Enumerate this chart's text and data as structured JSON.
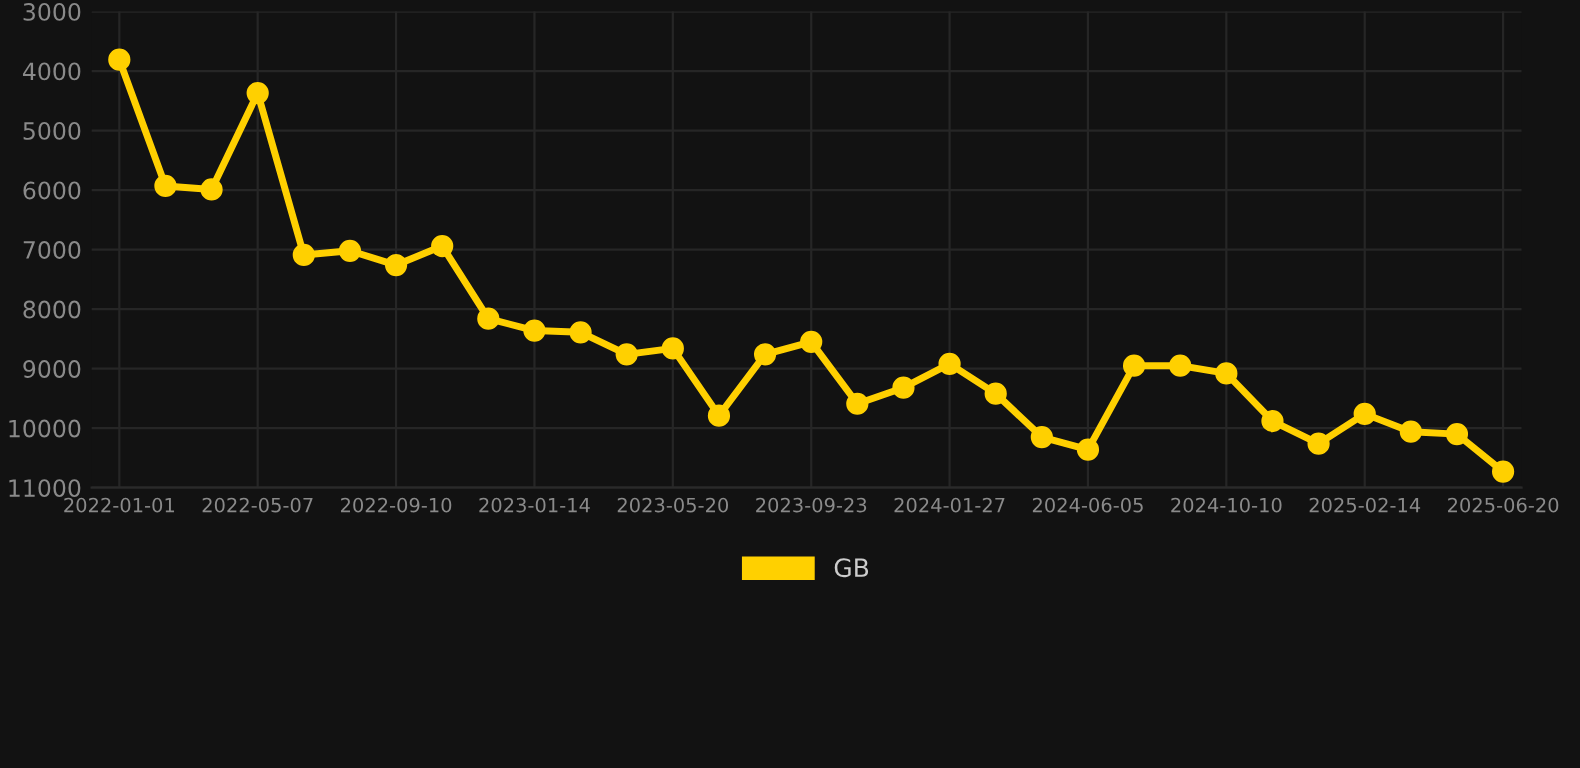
{
  "chart_data": {
    "type": "line",
    "categories": [
      "2022-01-01",
      null,
      null,
      "2022-05-07",
      null,
      null,
      "2022-09-10",
      null,
      null,
      "2023-01-14",
      null,
      null,
      "2023-05-20",
      null,
      null,
      "2023-09-23",
      null,
      null,
      "2024-01-27",
      null,
      null,
      "2024-06-05",
      null,
      null,
      "2024-10-10",
      null,
      null,
      "2025-02-14",
      null,
      null,
      "2025-06-20"
    ],
    "series": [
      {
        "name": "GB",
        "color": "#ffd000",
        "values": [
          3810,
          5930,
          5990,
          4370,
          7090,
          7020,
          7260,
          6940,
          8160,
          8360,
          8390,
          8760,
          8660,
          9790,
          8760,
          8550,
          9590,
          9320,
          8920,
          9420,
          10150,
          10360,
          8950,
          8950,
          9080,
          9880,
          10260,
          9760,
          10060,
          10100,
          10730
        ]
      }
    ],
    "ylim": [
      11000,
      3000
    ],
    "yticks": [
      3000,
      4000,
      5000,
      6000,
      7000,
      8000,
      9000,
      10000,
      11000
    ],
    "grid": true,
    "legend": "bottom",
    "marker": "circle",
    "line_style": "solid"
  }
}
